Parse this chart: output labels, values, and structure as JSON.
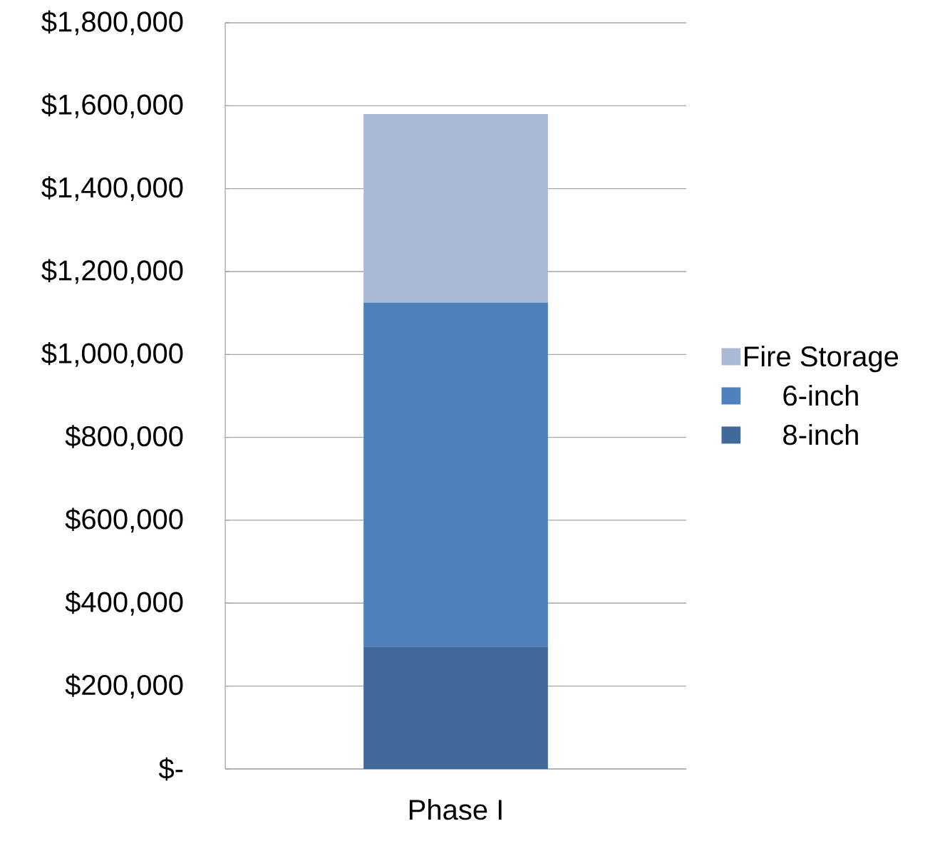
{
  "chart_data": {
    "type": "bar",
    "stacked": true,
    "categories": [
      "Phase I"
    ],
    "series": [
      {
        "name": "8-inch",
        "color": "#416a9b",
        "values": [
          295000
        ]
      },
      {
        "name": "6-inch",
        "color": "#4f81bd",
        "values": [
          830000
        ]
      },
      {
        "name": "Fire Storage",
        "color": "#aab9d6",
        "values": [
          455000
        ]
      }
    ],
    "ylim": [
      0,
      1800000
    ],
    "yticks": [
      {
        "value": 0,
        "label": "$-"
      },
      {
        "value": 200000,
        "label": "$200,000"
      },
      {
        "value": 400000,
        "label": "$400,000"
      },
      {
        "value": 600000,
        "label": "$600,000"
      },
      {
        "value": 800000,
        "label": "$800,000"
      },
      {
        "value": 1000000,
        "label": "$1,000,000"
      },
      {
        "value": 1200000,
        "label": "$1,200,000"
      },
      {
        "value": 1400000,
        "label": "$1,400,000"
      },
      {
        "value": 1600000,
        "label": "$1,600,000"
      },
      {
        "value": 1800000,
        "label": "$1,800,000"
      }
    ],
    "grid": "y",
    "legend": "right"
  }
}
